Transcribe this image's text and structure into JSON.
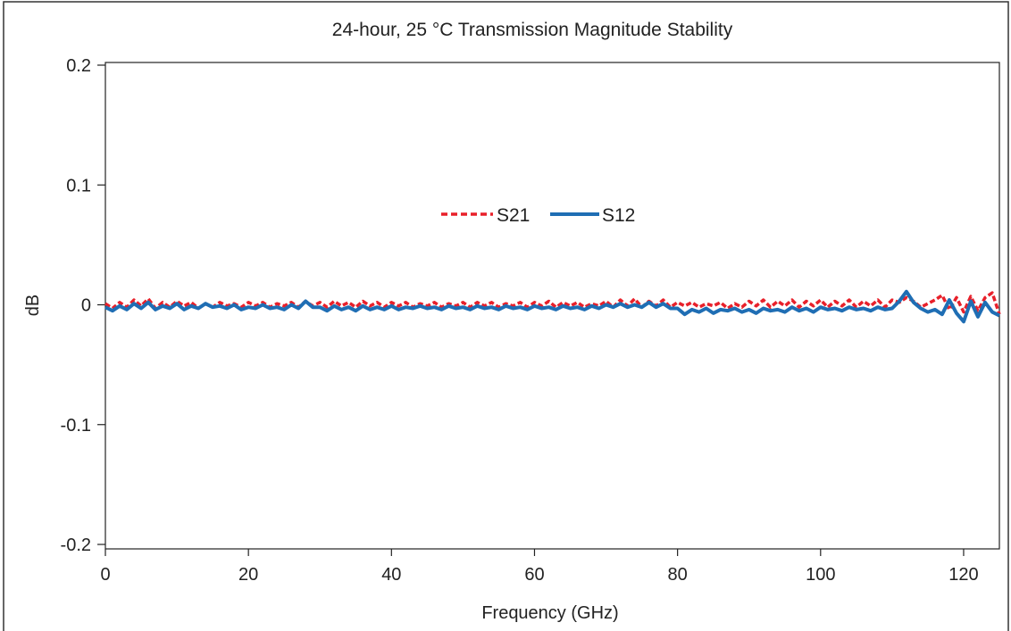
{
  "chart_data": {
    "type": "line",
    "title": "24-hour, 25 °C Transmission Magnitude Stability",
    "xlabel": "Frequency (GHz)",
    "ylabel": "dB",
    "xlim": [
      0,
      125
    ],
    "ylim": [
      -0.2,
      0.2
    ],
    "x_ticks": [
      "0",
      "20",
      "40",
      "60",
      "80",
      "100",
      "120"
    ],
    "y_ticks": [
      "0.2",
      "0.1",
      "0",
      "-0.1",
      "-0.2"
    ],
    "x_tick_values": [
      0,
      20,
      40,
      60,
      80,
      100,
      120
    ],
    "y_tick_values": [
      0.2,
      0.1,
      0,
      -0.1,
      -0.2
    ],
    "grid": false,
    "legend_position": "center",
    "x": [
      0,
      1,
      2,
      3,
      4,
      5,
      6,
      7,
      8,
      9,
      10,
      11,
      12,
      13,
      14,
      15,
      16,
      17,
      18,
      19,
      20,
      21,
      22,
      23,
      24,
      25,
      26,
      27,
      28,
      29,
      30,
      31,
      32,
      33,
      34,
      35,
      36,
      37,
      38,
      39,
      40,
      41,
      42,
      43,
      44,
      45,
      46,
      47,
      48,
      49,
      50,
      51,
      52,
      53,
      54,
      55,
      56,
      57,
      58,
      59,
      60,
      61,
      62,
      63,
      64,
      65,
      66,
      67,
      68,
      69,
      70,
      71,
      72,
      73,
      74,
      75,
      76,
      77,
      78,
      79,
      80,
      81,
      82,
      83,
      84,
      85,
      86,
      87,
      88,
      89,
      90,
      91,
      92,
      93,
      94,
      95,
      96,
      97,
      98,
      99,
      100,
      101,
      102,
      103,
      104,
      105,
      106,
      107,
      108,
      109,
      110,
      111,
      112,
      113,
      114,
      115,
      116,
      117,
      118,
      119,
      120,
      121,
      122,
      123,
      124,
      125
    ],
    "series": [
      {
        "name": "S21",
        "color": "#e8202a",
        "dash": "dashed",
        "values": [
          0.001,
          -0.003,
          0.002,
          -0.002,
          0.004,
          -0.001,
          0.005,
          -0.003,
          0.002,
          -0.002,
          0.003,
          -0.001,
          0.002,
          -0.003,
          0.001,
          -0.002,
          0.002,
          -0.001,
          0.001,
          -0.002,
          0.002,
          -0.001,
          0.002,
          -0.002,
          0.001,
          -0.001,
          0.002,
          -0.002,
          0.003,
          -0.001,
          0.002,
          -0.002,
          0.003,
          -0.001,
          0.002,
          -0.002,
          0.003,
          -0.001,
          0.002,
          -0.002,
          0.002,
          -0.001,
          0.002,
          -0.002,
          0.001,
          -0.001,
          0.002,
          -0.002,
          0.001,
          -0.001,
          0.002,
          -0.002,
          0.002,
          -0.001,
          0.002,
          -0.002,
          0.001,
          -0.001,
          0.002,
          -0.002,
          0.002,
          -0.001,
          0.003,
          -0.002,
          0.002,
          -0.001,
          0.002,
          -0.002,
          0.001,
          -0.001,
          0.003,
          -0.002,
          0.004,
          -0.001,
          0.005,
          -0.002,
          0.003,
          -0.001,
          0.004,
          -0.002,
          0.002,
          -0.001,
          0.002,
          -0.002,
          0.001,
          -0.001,
          0.002,
          -0.003,
          0.001,
          -0.002,
          0.003,
          -0.001,
          0.004,
          -0.002,
          0.003,
          -0.001,
          0.004,
          -0.002,
          0.003,
          -0.001,
          0.004,
          -0.002,
          0.003,
          -0.001,
          0.004,
          -0.002,
          0.003,
          -0.001,
          0.004,
          -0.002,
          0.004,
          0.002,
          0.006,
          0.003,
          -0.002,
          0.001,
          0.004,
          0.008,
          -0.004,
          0.006,
          -0.006,
          0.007,
          -0.005,
          0.006,
          0.01,
          -0.008
        ]
      },
      {
        "name": "S12",
        "color": "#1f6eb4",
        "dash": "solid",
        "values": [
          -0.002,
          -0.005,
          -0.001,
          -0.004,
          0.001,
          -0.003,
          0.002,
          -0.004,
          -0.001,
          -0.003,
          0.001,
          -0.004,
          -0.001,
          -0.003,
          0.001,
          -0.002,
          -0.001,
          -0.003,
          0.0,
          -0.004,
          -0.002,
          -0.003,
          0.0,
          -0.003,
          -0.002,
          -0.004,
          0.0,
          -0.003,
          0.003,
          -0.002,
          -0.002,
          -0.005,
          -0.001,
          -0.004,
          -0.002,
          -0.005,
          -0.001,
          -0.004,
          -0.002,
          -0.004,
          -0.001,
          -0.004,
          -0.002,
          -0.003,
          -0.001,
          -0.003,
          -0.002,
          -0.004,
          -0.001,
          -0.003,
          -0.002,
          -0.004,
          -0.001,
          -0.003,
          -0.002,
          -0.004,
          -0.001,
          -0.003,
          -0.002,
          -0.004,
          -0.001,
          -0.003,
          -0.002,
          -0.004,
          -0.001,
          -0.003,
          -0.002,
          -0.004,
          -0.001,
          -0.003,
          0.0,
          -0.002,
          0.001,
          -0.002,
          0.0,
          -0.002,
          0.002,
          -0.002,
          0.001,
          -0.003,
          -0.003,
          -0.008,
          -0.004,
          -0.006,
          -0.003,
          -0.007,
          -0.004,
          -0.005,
          -0.003,
          -0.006,
          -0.004,
          -0.007,
          -0.003,
          -0.005,
          -0.004,
          -0.006,
          -0.002,
          -0.005,
          -0.003,
          -0.006,
          -0.002,
          -0.004,
          -0.003,
          -0.005,
          -0.002,
          -0.004,
          -0.003,
          -0.005,
          -0.002,
          -0.004,
          -0.003,
          0.003,
          0.011,
          0.002,
          -0.003,
          -0.006,
          -0.004,
          -0.008,
          0.004,
          -0.007,
          -0.014,
          0.003,
          -0.01,
          0.002,
          -0.006,
          -0.009
        ]
      }
    ]
  }
}
